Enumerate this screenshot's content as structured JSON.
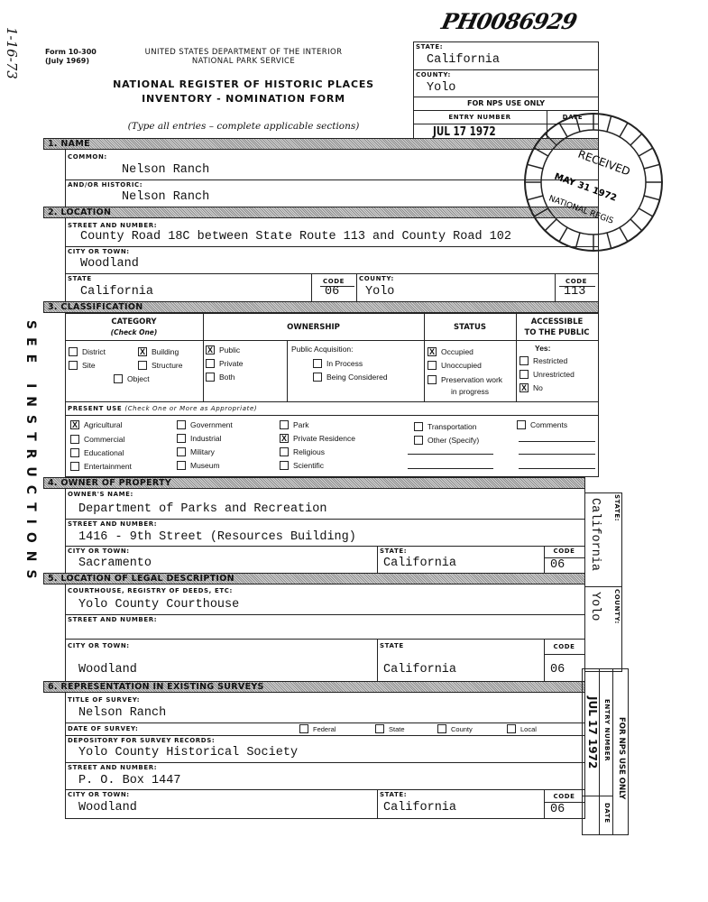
{
  "margin": {
    "handwritten_date": "1-16-73",
    "see_instructions": "SEE INSTRUCTIONS",
    "handwritten_id": "PH0086929"
  },
  "header": {
    "form_number": "Form 10-300",
    "form_date": "(July 1969)",
    "department": "UNITED STATES DEPARTMENT OF THE INTERIOR",
    "service": "NATIONAL PARK SERVICE",
    "title_line1": "NATIONAL REGISTER OF HISTORIC PLACES",
    "title_line2": "INVENTORY - NOMINATION FORM",
    "instructions": "(Type all entries – complete applicable sections)"
  },
  "nps_box": {
    "state_label": "STATE:",
    "state": "California",
    "county_label": "COUNTY:",
    "county": "Yolo",
    "nps_use": "FOR NPS USE ONLY",
    "entry_number_label": "ENTRY NUMBER",
    "date_label": "DATE",
    "entry_stamp": "JUL 17 1972"
  },
  "stamp": {
    "text": "RECEIVED",
    "date": "MAY 31 1972",
    "org": "NATIONAL REGIS"
  },
  "name": {
    "section": "1. NAME",
    "common_label": "COMMON:",
    "common": "Nelson Ranch",
    "historic_label": "AND/OR HISTORIC:",
    "historic": "Nelson Ranch"
  },
  "location": {
    "section": "2. LOCATION",
    "street_label": "STREET AND NUMBER:",
    "street": "County Road 18C between State Route 113 and County Road 102",
    "city_label": "CITY OR TOWN:",
    "city": "Woodland",
    "state_label": "STATE",
    "state": "California",
    "code_label": "CODE",
    "state_code": "06",
    "county_label": "COUNTY:",
    "county": "Yolo",
    "county_code_label": "CODE",
    "county_code": "113"
  },
  "classification": {
    "section": "3. CLASSIFICATION",
    "category_header": "CATEGORY",
    "category_sub": "(Check One)",
    "ownership_header": "OWNERSHIP",
    "status_header": "STATUS",
    "accessible_header1": "ACCESSIBLE",
    "accessible_header2": "TO THE PUBLIC",
    "category": [
      {
        "label": "District",
        "checked": false
      },
      {
        "label": "Building",
        "checked": true
      },
      {
        "label": "Site",
        "checked": false
      },
      {
        "label": "Structure",
        "checked": false
      },
      {
        "label": "Object",
        "checked": false
      }
    ],
    "ownership": [
      {
        "label": "Public",
        "checked": true
      },
      {
        "label": "Private",
        "checked": false
      },
      {
        "label": "Both",
        "checked": false
      }
    ],
    "acquisition_label": "Public Acquisition:",
    "acquisition": [
      {
        "label": "In Process",
        "checked": false
      },
      {
        "label": "Being Considered",
        "checked": false
      }
    ],
    "status": [
      {
        "label": "Occupied",
        "checked": true
      },
      {
        "label": "Unoccupied",
        "checked": false
      },
      {
        "label": "Preservation work",
        "checked": false
      }
    ],
    "status_cont": "in progress",
    "accessible_yes": "Yes:",
    "accessible": [
      {
        "label": "Restricted",
        "checked": false
      },
      {
        "label": "Unrestricted",
        "checked": false
      },
      {
        "label": "No",
        "checked": true
      }
    ],
    "present_use_label": "PRESENT USE",
    "present_use_note": "(Check One or More as Appropriate)",
    "present_use": [
      {
        "label": "Agricultural",
        "checked": true
      },
      {
        "label": "Commercial",
        "checked": false
      },
      {
        "label": "Educational",
        "checked": false
      },
      {
        "label": "Entertainment",
        "checked": false
      },
      {
        "label": "Government",
        "checked": false
      },
      {
        "label": "Industrial",
        "checked": false
      },
      {
        "label": "Military",
        "checked": false
      },
      {
        "label": "Museum",
        "checked": false
      },
      {
        "label": "Park",
        "checked": false
      },
      {
        "label": "Private Residence",
        "checked": true
      },
      {
        "label": "Religious",
        "checked": false
      },
      {
        "label": "Scientific",
        "checked": false
      },
      {
        "label": "Transportation",
        "checked": false
      },
      {
        "label": "Other (Specify)",
        "checked": false
      },
      {
        "label": "Comments",
        "checked": false
      }
    ]
  },
  "owner": {
    "section": "4. OWNER OF PROPERTY",
    "name_label": "OWNER'S NAME:",
    "name": "Department of Parks and Recreation",
    "street_label": "STREET AND NUMBER:",
    "street": "1416 - 9th Street (Resources Building)",
    "city_label": "CITY OR TOWN:",
    "city": "Sacramento",
    "state_label": "STATE:",
    "state": "California",
    "code_label": "CODE",
    "code": "06"
  },
  "legal": {
    "section": "5. LOCATION OF LEGAL DESCRIPTION",
    "courthouse_label": "COURTHOUSE, REGISTRY OF DEEDS, ETC:",
    "courthouse": "Yolo County Courthouse",
    "street_label": "STREET AND NUMBER:",
    "city_label": "CITY OR TOWN:",
    "city": "Woodland",
    "state_label": "STATE",
    "state": "California",
    "code_label": "CODE",
    "code": "06"
  },
  "surveys": {
    "section": "6. REPRESENTATION IN EXISTING SURVEYS",
    "title_label": "TITLE OF SURVEY:",
    "title": "Nelson Ranch",
    "date_label": "DATE OF SURVEY:",
    "levels": [
      {
        "label": "Federal",
        "checked": false
      },
      {
        "label": "State",
        "checked": false
      },
      {
        "label": "County",
        "checked": false
      },
      {
        "label": "Local",
        "checked": false
      }
    ],
    "depository_label": "DEPOSITORY FOR SURVEY RECORDS:",
    "depository": "Yolo County Historical Society",
    "street_label": "STREET AND NUMBER:",
    "street": "P. O. Box 1447",
    "city_label": "CITY OR TOWN:",
    "city": "Woodland",
    "state_label": "STATE:",
    "state": "California",
    "code_label": "CODE",
    "code": "06"
  },
  "side": {
    "state_label": "STATE:",
    "state": "California",
    "county_label": "COUNTY:",
    "county": "Yolo",
    "nps_use": "FOR NPS USE ONLY",
    "entry_number_label": "ENTRY NUMBER",
    "date_label": "DATE",
    "entry_stamp": "JUL 17 1972"
  }
}
